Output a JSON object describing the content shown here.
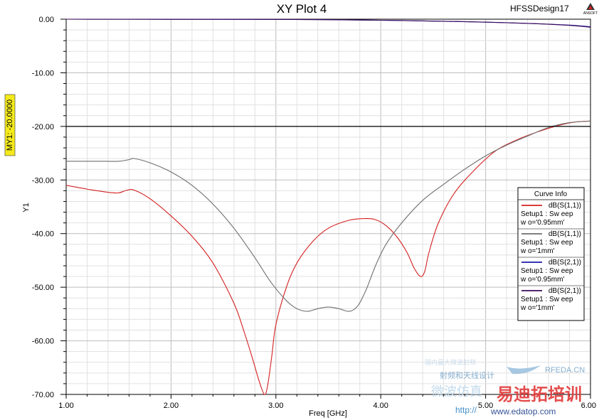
{
  "header": {
    "title": "XY Plot 4",
    "design": "HFSSDesign17",
    "brand": "ANSOFT"
  },
  "chart_data": {
    "type": "line",
    "title": "XY Plot 4",
    "xlabel": "Freq [GHz]",
    "ylabel": "Y1",
    "xlim": [
      1.0,
      6.0
    ],
    "ylim": [
      -70.0,
      0.0
    ],
    "x_ticks": [
      "1.00",
      "2.00",
      "3.00",
      "4.00",
      "5.00",
      "6.00"
    ],
    "y_ticks": [
      "0.00",
      "-10.00",
      "-20.00",
      "-30.00",
      "-40.00",
      "-50.00",
      "-60.00",
      "-70.00"
    ],
    "grid": true,
    "legend_position": "right",
    "marker": {
      "label": "MY1: -20.0000",
      "y": -20.0
    },
    "legend": {
      "title": "Curve Info",
      "entries": [
        {
          "line1": "dB(S(1,1))",
          "line2": "Setup1 : Sw eep",
          "line3": "w o='0.95mm'",
          "color": "#d42020"
        },
        {
          "line1": "dB(S(1,1))",
          "line2": "Setup1 : Sw eep",
          "line3": "w o='1mm'",
          "color": "#6e6e6e"
        },
        {
          "line1": "dB(S(2,1))",
          "line2": "Setup1 : Sw eep",
          "line3": "w o='0.95mm'",
          "color": "#1a1aa8"
        },
        {
          "line1": "dB(S(2,1))",
          "line2": "Setup1 : Sw eep",
          "line3": "w o='1mm'",
          "color": "#3a0a5a"
        }
      ]
    },
    "series": [
      {
        "color": "#d42020",
        "x": [
          1.0,
          1.2,
          1.4,
          1.5,
          1.58,
          1.65,
          1.8,
          2.0,
          2.2,
          2.4,
          2.6,
          2.7,
          2.78,
          2.84,
          2.89,
          2.92,
          2.96,
          3.0,
          3.1,
          3.2,
          3.35,
          3.5,
          3.7,
          3.85,
          3.95,
          4.05,
          4.15,
          4.25,
          4.32,
          4.38,
          4.42,
          4.46,
          4.55,
          4.7,
          4.9,
          5.1,
          5.3,
          5.5,
          5.7,
          5.85,
          6.0
        ],
        "y": [
          -31.0,
          -31.7,
          -32.3,
          -32.4,
          -31.9,
          -31.9,
          -33.5,
          -36.7,
          -40.5,
          -45.5,
          -53.0,
          -58.5,
          -63.5,
          -67.5,
          -70.0,
          -68.5,
          -63.0,
          -57.0,
          -50.0,
          -45.5,
          -41.5,
          -39.0,
          -37.5,
          -37.2,
          -37.4,
          -38.5,
          -40.5,
          -43.5,
          -46.5,
          -48.0,
          -47.0,
          -43.5,
          -38.0,
          -32.5,
          -28.0,
          -24.5,
          -22.5,
          -21.0,
          -19.8,
          -19.2,
          -19.0
        ]
      },
      {
        "color": "#6e6e6e",
        "x": [
          1.0,
          1.3,
          1.5,
          1.6,
          1.65,
          1.8,
          2.0,
          2.2,
          2.4,
          2.6,
          2.8,
          2.95,
          3.1,
          3.2,
          3.3,
          3.4,
          3.5,
          3.6,
          3.7,
          3.78,
          3.86,
          3.95,
          4.05,
          4.2,
          4.4,
          4.6,
          4.8,
          5.0,
          5.2,
          5.4,
          5.6,
          5.8,
          6.0
        ],
        "y": [
          -26.5,
          -26.5,
          -26.5,
          -26.2,
          -26.0,
          -26.8,
          -28.5,
          -31.0,
          -34.5,
          -39.0,
          -44.5,
          -49.0,
          -52.5,
          -54.0,
          -54.5,
          -54.0,
          -53.7,
          -54.0,
          -54.5,
          -53.5,
          -50.5,
          -46.0,
          -42.0,
          -38.0,
          -33.8,
          -30.8,
          -28.0,
          -25.5,
          -23.5,
          -21.8,
          -20.2,
          -19.3,
          -19.0
        ]
      },
      {
        "color": "#1a1aa8",
        "x": [
          1.0,
          2.0,
          3.0,
          3.5,
          4.0,
          4.5,
          5.0,
          5.5,
          5.8,
          6.0
        ],
        "y": [
          0.0,
          -0.02,
          -0.05,
          -0.1,
          -0.2,
          -0.35,
          -0.55,
          -0.85,
          -1.1,
          -1.4
        ]
      },
      {
        "color": "#3a0a5a",
        "x": [
          1.0,
          2.0,
          3.0,
          3.5,
          4.0,
          4.5,
          5.0,
          5.5,
          5.8,
          6.0
        ],
        "y": [
          0.0,
          -0.02,
          -0.05,
          -0.1,
          -0.2,
          -0.35,
          -0.55,
          -0.85,
          -1.15,
          -1.5
        ]
      }
    ]
  },
  "watermark": {
    "site_a": "RFEDA.CN",
    "site_b": "www.edatop.com",
    "url": "http://",
    "brand_big": "易迪拓培训",
    "cn_text": "微波仿真",
    "cn_small": "国内最大微波射频",
    "cn_sub": "射频和天线设计"
  }
}
